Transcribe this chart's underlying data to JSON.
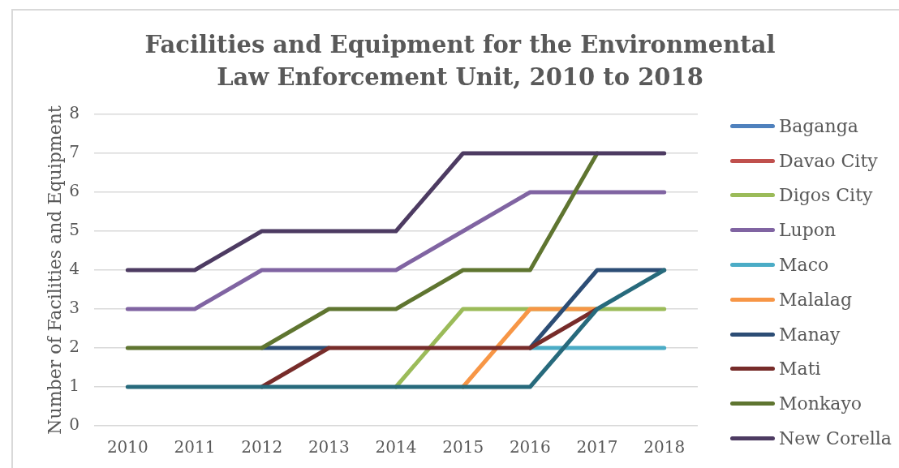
{
  "chart_data": {
    "type": "line",
    "title": "Facilities and Equipment for the Environmental Law Enforcement Unit, 2010 to 2018",
    "ylabel": "Number of Facilities and Equipment",
    "categories": [
      "2010",
      "2011",
      "2012",
      "2013",
      "2014",
      "2015",
      "2016",
      "2017",
      "2018"
    ],
    "ylim": [
      0,
      8
    ],
    "yticks": [
      0,
      1,
      2,
      3,
      4,
      5,
      6,
      7,
      8
    ],
    "grid": "y",
    "legend": "right",
    "marker": "none",
    "line_style": "solid",
    "series": [
      {
        "name": "Baganga",
        "color": "#4f81bd",
        "values": [
          null,
          null,
          null,
          null,
          null,
          null,
          null,
          null,
          null
        ]
      },
      {
        "name": "Davao City",
        "color": "#c0504d",
        "values": [
          null,
          null,
          null,
          null,
          null,
          null,
          null,
          null,
          null
        ]
      },
      {
        "name": "Digos City",
        "color": "#9bbb59",
        "values": [
          null,
          null,
          null,
          null,
          1,
          3,
          3,
          3,
          3
        ]
      },
      {
        "name": "Lupon",
        "color": "#8064a2",
        "values": [
          3,
          3,
          4,
          4,
          4,
          5,
          6,
          6,
          6
        ]
      },
      {
        "name": "Maco",
        "color": "#4bacc6",
        "values": [
          null,
          null,
          null,
          null,
          null,
          null,
          2,
          2,
          2
        ]
      },
      {
        "name": "Malalag",
        "color": "#f79646",
        "values": [
          null,
          null,
          null,
          null,
          null,
          1,
          3,
          3,
          null
        ]
      },
      {
        "name": "Manay",
        "color": "#2c4d75",
        "values": [
          null,
          null,
          2,
          2,
          null,
          null,
          2,
          4,
          4
        ]
      },
      {
        "name": "Mati",
        "color": "#772c2a",
        "values": [
          null,
          null,
          1,
          2,
          2,
          2,
          2,
          3,
          null
        ]
      },
      {
        "name": "Monkayo",
        "color": "#5f7530",
        "values": [
          2,
          2,
          2,
          3,
          3,
          4,
          4,
          7,
          null
        ]
      },
      {
        "name": "New Corella",
        "color": "#4d3b62",
        "values": [
          4,
          4,
          5,
          5,
          5,
          7,
          7,
          7,
          7
        ]
      },
      {
        "color": "#276a7c",
        "values": [
          1,
          1,
          1,
          1,
          1,
          1,
          1,
          3,
          4
        ]
      }
    ]
  }
}
